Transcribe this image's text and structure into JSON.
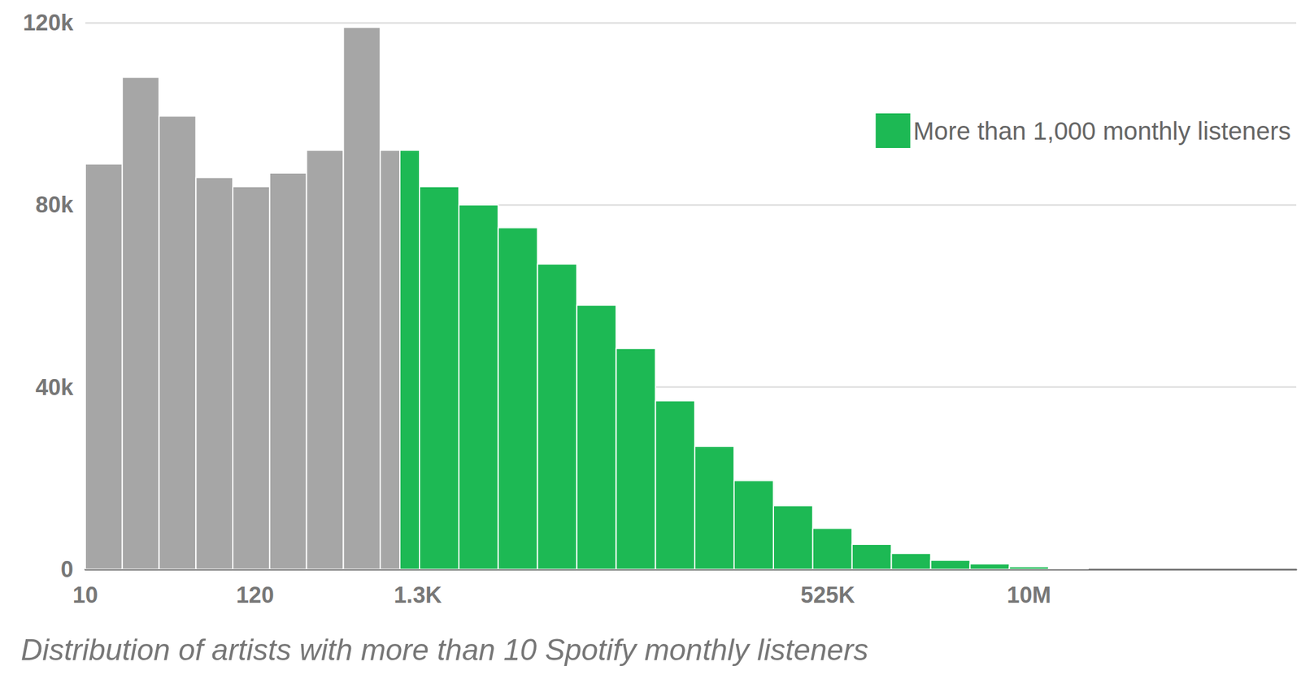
{
  "chart_data": {
    "type": "histogram",
    "title": "Distribution of artists with more than 10 Spotify monthly listeners",
    "bins": [
      10,
      17.16,
      29.43,
      50.49,
      86.6,
      148.6,
      254.9,
      437.3,
      750,
      1000,
      1333,
      2371,
      4216,
      7497,
      13330,
      23710,
      42160,
      74970,
      133300,
      237100,
      421600,
      749700,
      1333000,
      2371000,
      4216000,
      7497000,
      13330000,
      23710000
    ],
    "series": [
      {
        "color": "#a6a6a6",
        "values": [
          89000,
          108000,
          99500,
          86000,
          84000,
          87000,
          92000,
          119000,
          92000,
          null,
          null,
          null,
          null,
          null,
          null,
          null,
          null,
          null,
          null,
          null,
          null,
          null,
          null,
          null,
          null,
          null,
          null
        ]
      },
      {
        "name": "More than 1,000 monthly listeners",
        "color": "#1db954",
        "values": [
          null,
          null,
          null,
          null,
          null,
          null,
          null,
          null,
          null,
          92000,
          84000,
          80000,
          75000,
          67000,
          58000,
          48500,
          37000,
          27000,
          19500,
          14000,
          9000,
          5500,
          3500,
          2000,
          1200,
          600,
          200
        ]
      }
    ],
    "log": "x",
    "xlim": [
      10,
      500000000
    ],
    "xticks": [
      10,
      120,
      {
        "value": 1300,
        "label": "1.3K"
      },
      {
        "value": 525000,
        "label": "525K"
      },
      {
        "value": 10000000,
        "label": "10M"
      }
    ],
    "ylim": [
      0,
      120000
    ],
    "yticks": [
      0,
      {
        "value": 40000,
        "label": "40k"
      },
      {
        "value": 80000,
        "label": "80k"
      },
      {
        "value": 120000,
        "label": "120k"
      }
    ],
    "grid": true,
    "legend": "upper right"
  }
}
